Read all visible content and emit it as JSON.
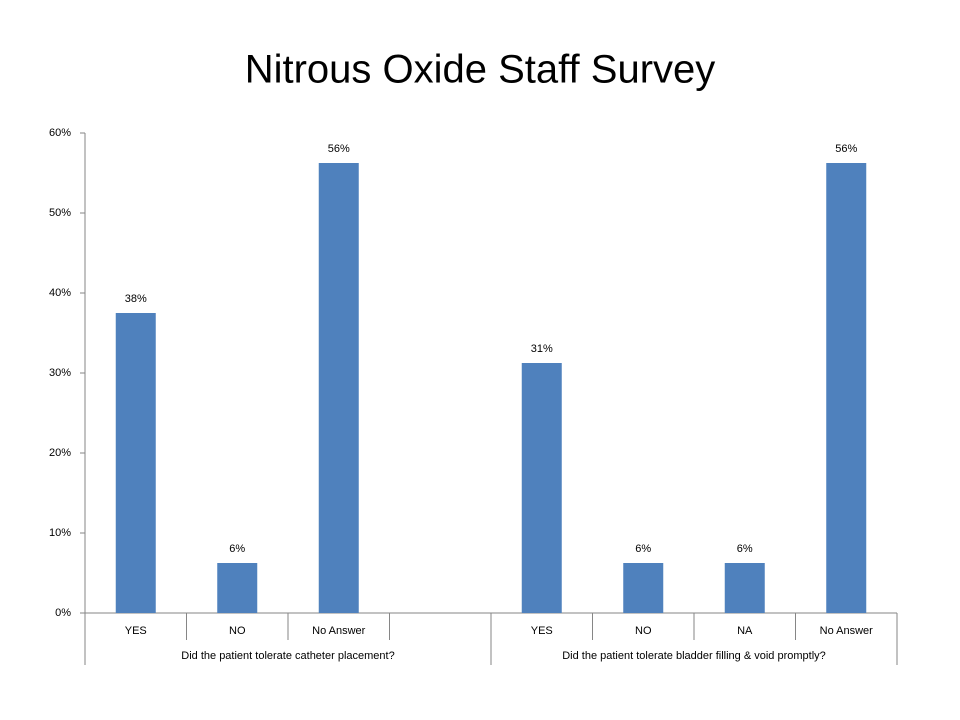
{
  "chart_data": {
    "type": "bar",
    "title": "Nitrous Oxide Staff Survey",
    "categories": [
      "YES",
      "NO",
      "No Answer",
      null,
      "YES",
      "NO",
      "NA",
      "No Answer"
    ],
    "values": [
      37.5,
      6.25,
      56.25,
      null,
      31.25,
      6.25,
      6.25,
      56.25
    ],
    "value_labels": [
      "38%",
      "6%",
      "56%",
      null,
      "31%",
      "6%",
      "6%",
      "56%"
    ],
    "groups": [
      "Did the patient tolerate catheter placement?",
      "Did the patient tolerate bladder filling & void promptly?"
    ],
    "color": "#4f81bd",
    "ylim": [
      0,
      60
    ],
    "yticks": [
      {
        "value": 0,
        "label": "0%"
      },
      {
        "value": 10,
        "label": "10%"
      },
      {
        "value": 20,
        "label": "20%"
      },
      {
        "value": 30,
        "label": "30%"
      },
      {
        "value": 40,
        "label": "40%"
      },
      {
        "value": 50,
        "label": "50%"
      },
      {
        "value": 60,
        "label": "60%"
      }
    ],
    "grid": false
  }
}
